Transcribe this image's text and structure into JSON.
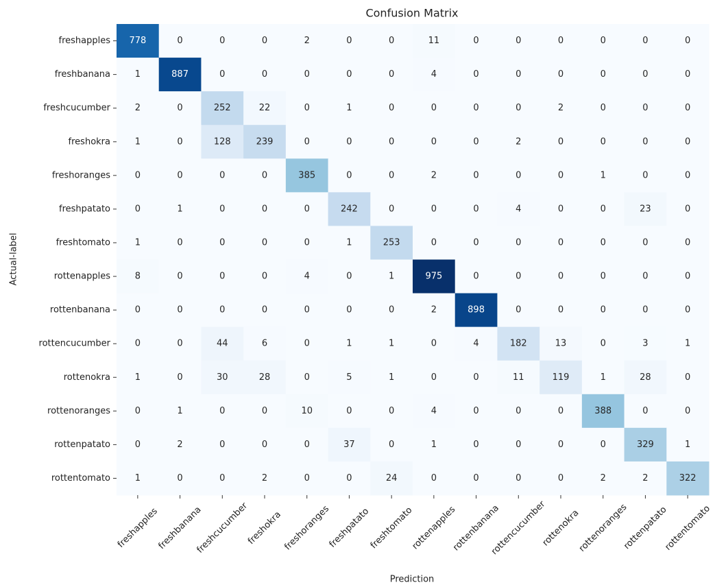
{
  "chart_data": {
    "type": "heatmap",
    "title": "Confusion Matrix",
    "x_label": "Prediction",
    "y_label": "Actual-label",
    "x_categories": [
      "freshapples",
      "freshbanana",
      "freshcucumber",
      "freshokra",
      "freshoranges",
      "freshpatato",
      "freshtomato",
      "rottenapples",
      "rottenbanana",
      "rottencucumber",
      "rottenokra",
      "rottenoranges",
      "rottenpatato",
      "rottentomato"
    ],
    "y_categories": [
      "freshapples",
      "freshbanana",
      "freshcucumber",
      "freshokra",
      "freshoranges",
      "freshpatato",
      "freshtomato",
      "rottenapples",
      "rottenbanana",
      "rottencucumber",
      "rottenokra",
      "rottenoranges",
      "rottenpatato",
      "rottentomato"
    ],
    "values": [
      [
        778,
        0,
        0,
        0,
        2,
        0,
        0,
        11,
        0,
        0,
        0,
        0,
        0,
        0
      ],
      [
        1,
        887,
        0,
        0,
        0,
        0,
        0,
        4,
        0,
        0,
        0,
        0,
        0,
        0
      ],
      [
        2,
        0,
        252,
        22,
        0,
        1,
        0,
        0,
        0,
        0,
        2,
        0,
        0,
        0
      ],
      [
        1,
        0,
        128,
        239,
        0,
        0,
        0,
        0,
        0,
        2,
        0,
        0,
        0,
        0
      ],
      [
        0,
        0,
        0,
        0,
        385,
        0,
        0,
        2,
        0,
        0,
        0,
        1,
        0,
        0
      ],
      [
        0,
        1,
        0,
        0,
        0,
        242,
        0,
        0,
        0,
        4,
        0,
        0,
        23,
        0
      ],
      [
        1,
        0,
        0,
        0,
        0,
        1,
        253,
        0,
        0,
        0,
        0,
        0,
        0,
        0
      ],
      [
        8,
        0,
        0,
        0,
        4,
        0,
        1,
        975,
        0,
        0,
        0,
        0,
        0,
        0
      ],
      [
        0,
        0,
        0,
        0,
        0,
        0,
        0,
        2,
        898,
        0,
        0,
        0,
        0,
        0
      ],
      [
        0,
        0,
        44,
        6,
        0,
        1,
        1,
        0,
        4,
        182,
        13,
        0,
        3,
        1
      ],
      [
        1,
        0,
        30,
        28,
        0,
        5,
        1,
        0,
        0,
        11,
        119,
        1,
        28,
        0
      ],
      [
        0,
        1,
        0,
        0,
        10,
        0,
        0,
        4,
        0,
        0,
        0,
        388,
        0,
        0
      ],
      [
        0,
        2,
        0,
        0,
        0,
        37,
        0,
        1,
        0,
        0,
        0,
        0,
        329,
        1
      ],
      [
        1,
        0,
        0,
        2,
        0,
        0,
        24,
        0,
        0,
        0,
        0,
        2,
        2,
        322
      ]
    ],
    "colormap": "Blues"
  }
}
